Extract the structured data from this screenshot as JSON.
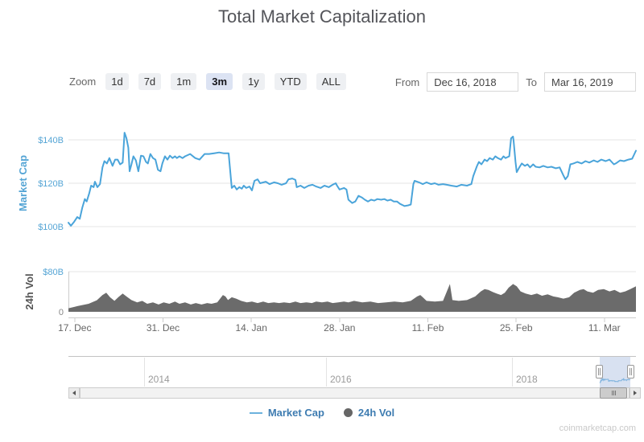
{
  "title": "Total Market Capitalization",
  "toolbar": {
    "zoom_label": "Zoom",
    "buttons": [
      {
        "label": "1d",
        "selected": false
      },
      {
        "label": "7d",
        "selected": false
      },
      {
        "label": "1m",
        "selected": false
      },
      {
        "label": "3m",
        "selected": true
      },
      {
        "label": "1y",
        "selected": false
      },
      {
        "label": "YTD",
        "selected": false
      },
      {
        "label": "ALL",
        "selected": false
      }
    ],
    "from_label": "From",
    "from_value": "Dec 16, 2018",
    "to_label": "To",
    "to_value": "Mar 16, 2019"
  },
  "chart_data": {
    "type": "line",
    "title": "Total Market Capitalization",
    "unit": "USD billions",
    "x_axis": {
      "start": "Dec 16, 2018",
      "end": "Mar 16, 2019",
      "days_shown": 90,
      "tick_labels": [
        "17. Dec",
        "31. Dec",
        "14. Jan",
        "28. Jan",
        "11. Feb",
        "25. Feb",
        "11. Mar"
      ],
      "tick_days": [
        1,
        15,
        29,
        43,
        57,
        71,
        85
      ]
    },
    "panes": [
      {
        "name": "Market Cap",
        "type": "line",
        "color": "#4aa4da",
        "ylabel": "Market Cap",
        "ytick_labels": [
          "$100B",
          "$120B",
          "$140B"
        ],
        "ylim": [
          95,
          148
        ],
        "points": [
          [
            0,
            101.8
          ],
          [
            0.4,
            100.4
          ],
          [
            0.9,
            102.2
          ],
          [
            1.4,
            104.4
          ],
          [
            1.8,
            103.6
          ],
          [
            2.2,
            108.7
          ],
          [
            2.6,
            112.7
          ],
          [
            2.9,
            111.6
          ],
          [
            3.3,
            115.3
          ],
          [
            3.6,
            118.9
          ],
          [
            4,
            118.2
          ],
          [
            4.2,
            120.7
          ],
          [
            4.6,
            118.2
          ],
          [
            5,
            119.6
          ],
          [
            5.4,
            127.3
          ],
          [
            5.7,
            130.2
          ],
          [
            6.1,
            129.1
          ],
          [
            6.5,
            131.6
          ],
          [
            7,
            128
          ],
          [
            7.4,
            130.9
          ],
          [
            7.8,
            130.9
          ],
          [
            8.2,
            128.7
          ],
          [
            8.6,
            129.5
          ],
          [
            8.9,
            143.3
          ],
          [
            9.2,
            140.7
          ],
          [
            9.5,
            136.4
          ],
          [
            9.7,
            125.5
          ],
          [
            10,
            128.7
          ],
          [
            10.3,
            132.4
          ],
          [
            10.7,
            130.5
          ],
          [
            11.1,
            125.5
          ],
          [
            11.5,
            132.7
          ],
          [
            11.9,
            132.4
          ],
          [
            12.3,
            129.8
          ],
          [
            12.6,
            129.1
          ],
          [
            13,
            133.5
          ],
          [
            13.4,
            131.6
          ],
          [
            13.8,
            130.9
          ],
          [
            14.2,
            126.2
          ],
          [
            14.6,
            125.5
          ],
          [
            14.9,
            129.1
          ],
          [
            15.3,
            132.4
          ],
          [
            15.7,
            130.9
          ],
          [
            16.1,
            132.7
          ],
          [
            16.5,
            131.6
          ],
          [
            16.9,
            132.4
          ],
          [
            17.2,
            131.6
          ],
          [
            17.6,
            132.4
          ],
          [
            18.1,
            131.6
          ],
          [
            18.5,
            132.4
          ],
          [
            19.3,
            133.5
          ],
          [
            20.1,
            131.6
          ],
          [
            20.8,
            130.9
          ],
          [
            21.6,
            133.5
          ],
          [
            22.3,
            133.5
          ],
          [
            23.1,
            133.8
          ],
          [
            23.9,
            134.2
          ],
          [
            24.6,
            133.8
          ],
          [
            25.4,
            133.8
          ],
          [
            25.7,
            124.4
          ],
          [
            25.9,
            117.8
          ],
          [
            26.3,
            118.9
          ],
          [
            26.7,
            117.1
          ],
          [
            27.1,
            118.2
          ],
          [
            27.5,
            117.5
          ],
          [
            27.8,
            118.9
          ],
          [
            28.2,
            117.8
          ],
          [
            28.7,
            118.5
          ],
          [
            29.1,
            116.7
          ],
          [
            29.5,
            121.1
          ],
          [
            30,
            121.8
          ],
          [
            30.4,
            120
          ],
          [
            31.3,
            120.7
          ],
          [
            31.9,
            119.6
          ],
          [
            32.6,
            120.4
          ],
          [
            33.2,
            120
          ],
          [
            33.8,
            119.3
          ],
          [
            34.5,
            120
          ],
          [
            34.9,
            121.8
          ],
          [
            35.5,
            122.2
          ],
          [
            36,
            121.5
          ],
          [
            36.2,
            118.2
          ],
          [
            36.8,
            118.9
          ],
          [
            37.4,
            117.8
          ],
          [
            38.1,
            118.9
          ],
          [
            38.7,
            119.3
          ],
          [
            39.3,
            118.5
          ],
          [
            40,
            117.8
          ],
          [
            40.6,
            118.9
          ],
          [
            41.3,
            118.2
          ],
          [
            41.9,
            119.3
          ],
          [
            42.4,
            120
          ],
          [
            42.6,
            118.9
          ],
          [
            43,
            117.1
          ],
          [
            43.7,
            117.8
          ],
          [
            44.1,
            117.1
          ],
          [
            44.4,
            112.4
          ],
          [
            45,
            110.9
          ],
          [
            45.5,
            111.6
          ],
          [
            46,
            114.2
          ],
          [
            46.5,
            113.5
          ],
          [
            47,
            112.4
          ],
          [
            47.5,
            111.6
          ],
          [
            48,
            112.4
          ],
          [
            48.5,
            112
          ],
          [
            49,
            112.7
          ],
          [
            49.6,
            112.4
          ],
          [
            50.1,
            112.7
          ],
          [
            50.6,
            112
          ],
          [
            51.1,
            112.4
          ],
          [
            51.6,
            111.6
          ],
          [
            52.1,
            111.6
          ],
          [
            52.6,
            110.5
          ],
          [
            53.3,
            109.5
          ],
          [
            53.9,
            109.8
          ],
          [
            54.3,
            110.2
          ],
          [
            54.7,
            119.6
          ],
          [
            54.9,
            121.1
          ],
          [
            55.6,
            120.4
          ],
          [
            56.2,
            119.6
          ],
          [
            56.8,
            120.4
          ],
          [
            57.5,
            119.6
          ],
          [
            58.1,
            120
          ],
          [
            58.7,
            119.3
          ],
          [
            59.4,
            119.6
          ],
          [
            60,
            119.3
          ],
          [
            60.7,
            118.9
          ],
          [
            61.6,
            118.5
          ],
          [
            62.3,
            119.3
          ],
          [
            63.2,
            118.9
          ],
          [
            63.9,
            119.6
          ],
          [
            64.2,
            123.3
          ],
          [
            64.8,
            128
          ],
          [
            65.1,
            129.8
          ],
          [
            65.5,
            128.7
          ],
          [
            66,
            130.9
          ],
          [
            66.4,
            130.2
          ],
          [
            66.8,
            131.6
          ],
          [
            67.3,
            130.9
          ],
          [
            67.7,
            132.4
          ],
          [
            68.1,
            131.6
          ],
          [
            68.6,
            130.9
          ],
          [
            69,
            132.4
          ],
          [
            69.3,
            131.6
          ],
          [
            69.9,
            132.4
          ],
          [
            70.2,
            140.7
          ],
          [
            70.5,
            141.5
          ],
          [
            70.6,
            139.6
          ],
          [
            70.9,
            129.8
          ],
          [
            71.1,
            125.1
          ],
          [
            71.5,
            127.3
          ],
          [
            71.9,
            129.1
          ],
          [
            72.4,
            128
          ],
          [
            72.8,
            128.7
          ],
          [
            73.2,
            127.3
          ],
          [
            73.7,
            128.7
          ],
          [
            74.1,
            127.6
          ],
          [
            74.7,
            127.3
          ],
          [
            75.3,
            128
          ],
          [
            76,
            127.3
          ],
          [
            76.6,
            127.6
          ],
          [
            77.3,
            126.9
          ],
          [
            77.9,
            127.3
          ],
          [
            78.5,
            123.6
          ],
          [
            78.8,
            121.8
          ],
          [
            79.2,
            123.3
          ],
          [
            79.6,
            128.7
          ],
          [
            80.1,
            129.1
          ],
          [
            80.7,
            129.8
          ],
          [
            81.4,
            129.1
          ],
          [
            82,
            130.2
          ],
          [
            82.6,
            129.5
          ],
          [
            83.3,
            130.5
          ],
          [
            83.9,
            129.8
          ],
          [
            84.5,
            130.9
          ],
          [
            85.2,
            130.2
          ],
          [
            85.8,
            130.9
          ],
          [
            86.5,
            128.7
          ],
          [
            86.8,
            129.1
          ],
          [
            87.5,
            130.5
          ],
          [
            88.1,
            130.2
          ],
          [
            88.8,
            130.9
          ],
          [
            89.4,
            131.3
          ],
          [
            90,
            135
          ]
        ]
      },
      {
        "name": "24h Vol",
        "type": "area",
        "color": "#6b6b6b",
        "ylabel": "24h Vol",
        "ytick_labels": [
          "0",
          "$80B"
        ],
        "ylim": [
          0,
          80
        ],
        "points": [
          [
            0,
            7
          ],
          [
            1.5,
            11.6
          ],
          [
            3.2,
            16
          ],
          [
            4.5,
            23
          ],
          [
            5.4,
            33.5
          ],
          [
            6,
            38
          ],
          [
            6.6,
            29
          ],
          [
            7.3,
            21.8
          ],
          [
            7.9,
            29
          ],
          [
            8.6,
            36.4
          ],
          [
            9.2,
            30.5
          ],
          [
            10,
            23.3
          ],
          [
            10.9,
            18.9
          ],
          [
            11.7,
            21.8
          ],
          [
            12.5,
            16
          ],
          [
            13.4,
            18.9
          ],
          [
            14.3,
            14.5
          ],
          [
            15.1,
            18.9
          ],
          [
            16,
            16
          ],
          [
            16.9,
            20.4
          ],
          [
            17.6,
            16
          ],
          [
            18.5,
            18.9
          ],
          [
            19.4,
            14.5
          ],
          [
            20.2,
            17.5
          ],
          [
            21.1,
            14.5
          ],
          [
            22,
            17.5
          ],
          [
            22.7,
            16
          ],
          [
            23.6,
            18.9
          ],
          [
            24.5,
            33.5
          ],
          [
            24.9,
            30.5
          ],
          [
            25.3,
            23.3
          ],
          [
            25.9,
            29
          ],
          [
            26.6,
            26.2
          ],
          [
            27.4,
            21.8
          ],
          [
            28.3,
            18.9
          ],
          [
            29.1,
            20.4
          ],
          [
            30,
            17.5
          ],
          [
            30.9,
            20.4
          ],
          [
            31.7,
            17.5
          ],
          [
            32.6,
            18.9
          ],
          [
            33.4,
            17.5
          ],
          [
            34.2,
            18.9
          ],
          [
            35.1,
            17.5
          ],
          [
            36,
            20.4
          ],
          [
            36.8,
            17.5
          ],
          [
            37.7,
            18.9
          ],
          [
            38.6,
            17.5
          ],
          [
            39.3,
            20.4
          ],
          [
            40.2,
            18.9
          ],
          [
            41.1,
            20.4
          ],
          [
            41.9,
            17.5
          ],
          [
            42.8,
            18.9
          ],
          [
            43.7,
            20.4
          ],
          [
            44.4,
            18.9
          ],
          [
            45.3,
            21.8
          ],
          [
            46.6,
            18.9
          ],
          [
            47.9,
            20.4
          ],
          [
            49.1,
            17.5
          ],
          [
            50.4,
            18.9
          ],
          [
            51.7,
            20.4
          ],
          [
            53,
            18.9
          ],
          [
            54.3,
            21.8
          ],
          [
            55.3,
            30.5
          ],
          [
            55.8,
            33.5
          ],
          [
            56.2,
            29
          ],
          [
            56.8,
            21.8
          ],
          [
            58.1,
            20.4
          ],
          [
            59.4,
            21.8
          ],
          [
            60.5,
            55.3
          ],
          [
            60.9,
            23.3
          ],
          [
            61.9,
            21.8
          ],
          [
            63.2,
            23.3
          ],
          [
            64.5,
            30.5
          ],
          [
            65.4,
            40.7
          ],
          [
            66,
            45.1
          ],
          [
            66.6,
            43.6
          ],
          [
            67.3,
            39.3
          ],
          [
            67.9,
            36.4
          ],
          [
            68.6,
            33.5
          ],
          [
            69.2,
            38
          ],
          [
            69.8,
            48
          ],
          [
            70.5,
            55.3
          ],
          [
            71.1,
            50.9
          ],
          [
            71.7,
            40.7
          ],
          [
            72.5,
            36.4
          ],
          [
            73.4,
            33.5
          ],
          [
            74.3,
            36.4
          ],
          [
            75.1,
            32
          ],
          [
            76,
            34.9
          ],
          [
            76.9,
            30.5
          ],
          [
            77.6,
            29
          ],
          [
            78.5,
            26.2
          ],
          [
            79.4,
            29
          ],
          [
            80.2,
            38
          ],
          [
            81.1,
            43.6
          ],
          [
            81.7,
            45.1
          ],
          [
            82.3,
            40.7
          ],
          [
            83.2,
            38
          ],
          [
            84,
            43.6
          ],
          [
            84.9,
            45.1
          ],
          [
            85.8,
            40.7
          ],
          [
            86.6,
            43.6
          ],
          [
            87.5,
            38
          ],
          [
            88.3,
            40.7
          ],
          [
            89.1,
            45.1
          ],
          [
            90,
            50.9
          ]
        ]
      }
    ],
    "navigator": {
      "year_labels": [
        "2014",
        "2016",
        "2018"
      ],
      "selection_from": "Dec 16, 2018",
      "selection_to": "Mar 16, 2019"
    },
    "legend_position": "bottom"
  },
  "legend": [
    {
      "label": "Market Cap",
      "marker": "line",
      "color": "#6cb2dd"
    },
    {
      "label": "24h Vol",
      "marker": "circle",
      "color": "#666666"
    }
  ],
  "watermark": "coinmarketcap.com"
}
